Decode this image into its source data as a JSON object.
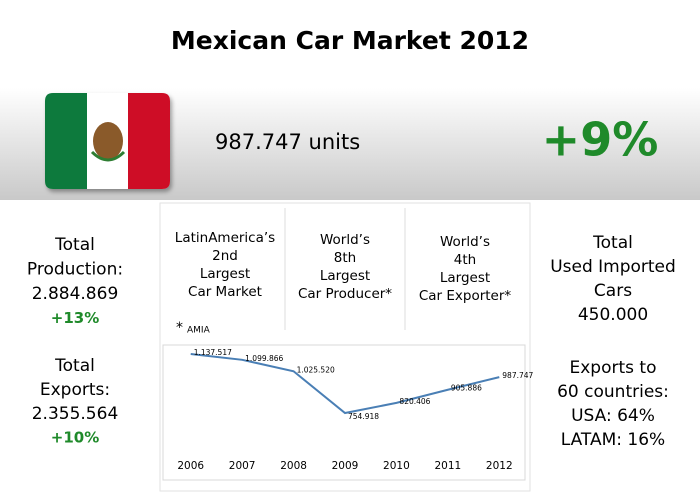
{
  "title": "Mexican Car Market 2012",
  "header": {
    "units": "987.747 units",
    "growth": "+9%"
  },
  "left": [
    {
      "lines": [
        "Total",
        "Production:",
        "2.884.869"
      ],
      "change": "+13%"
    },
    {
      "lines": [
        "Total",
        "Exports:",
        "2.355.564"
      ],
      "change": "+10%"
    }
  ],
  "right": [
    {
      "lines": [
        "Total",
        "Used Imported",
        "Cars",
        "450.000"
      ]
    },
    {
      "lines": [
        "Exports to",
        "60 countries:",
        "USA: 64%",
        "LATAM: 16%"
      ]
    }
  ],
  "rankings": [
    {
      "lines": [
        "LatinAmerica’s",
        "2nd",
        "Largest",
        "Car Market"
      ]
    },
    {
      "lines": [
        "World’s",
        "8th",
        "Largest",
        "Car Producer*"
      ]
    },
    {
      "lines": [
        "World’s",
        "4th",
        "Largest",
        "Car Exporter*"
      ]
    }
  ],
  "source": {
    "mark": "*",
    "name": "AMIA"
  },
  "chart_data": {
    "type": "line",
    "categories": [
      "2006",
      "2007",
      "2008",
      "2009",
      "2010",
      "2011",
      "2012"
    ],
    "values": [
      1137517,
      1099866,
      1025520,
      754918,
      820406,
      905886,
      987747
    ],
    "value_labels": [
      "1.137.517",
      "1.099.866",
      "1.025.520",
      "754.918",
      "820.406",
      "905.886",
      "987.747"
    ],
    "color": "#4a7fb5"
  }
}
